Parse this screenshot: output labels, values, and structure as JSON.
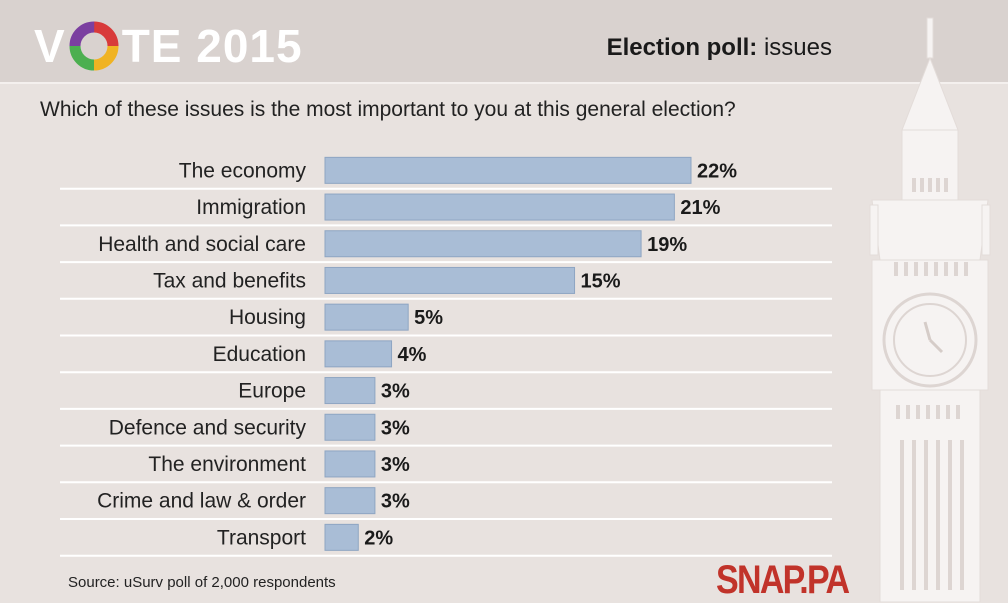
{
  "header": {
    "logo_text_left": "V",
    "logo_text_right": "TE 2015",
    "title_bold": "Election poll:",
    "title_rest": " issues"
  },
  "question": "Which of these issues is the most important to you at this general election?",
  "source": "Source: uSurv poll of 2,000 respondents",
  "brand": "SNAP.PA",
  "colors": {
    "bar": "#a9bdd6",
    "bar_stroke": "#8ea5c2",
    "rule": "#ffffff",
    "background": "#e8e2df",
    "brand": "#c1332a"
  },
  "chart_data": {
    "type": "bar",
    "orientation": "horizontal",
    "categories": [
      "The economy",
      "Immigration",
      "Health and social care",
      "Tax and benefits",
      "Housing",
      "Education",
      "Europe",
      "Defence and security",
      "The environment",
      "Crime and law & order",
      "Transport"
    ],
    "values": [
      22,
      21,
      19,
      15,
      5,
      4,
      3,
      3,
      3,
      3,
      2
    ],
    "value_labels": [
      "22%",
      "21%",
      "19%",
      "15%",
      "5%",
      "4%",
      "3%",
      "3%",
      "3%",
      "3%",
      "2%"
    ],
    "unit": "%",
    "xlim": [
      0,
      22
    ],
    "grid": false
  }
}
